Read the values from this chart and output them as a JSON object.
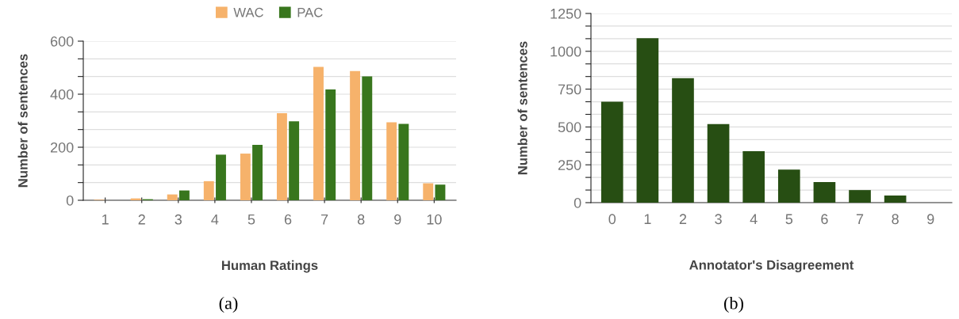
{
  "chart_data": [
    {
      "type": "bar",
      "categories": [
        "1",
        "2",
        "3",
        "4",
        "5",
        "6",
        "7",
        "8",
        "9",
        "10"
      ],
      "xlabel": "Human Ratings",
      "ylabel": "Number of sentences",
      "series": [
        {
          "name": "WAC",
          "color": "#f6b26b",
          "values": [
            2,
            7,
            22,
            72,
            176,
            328,
            503,
            487,
            294,
            64
          ]
        },
        {
          "name": "PAC",
          "color": "#38761d",
          "values": [
            null,
            4,
            37,
            172,
            209,
            298,
            418,
            467,
            288,
            59
          ]
        }
      ],
      "ylim": [
        0,
        600
      ],
      "yticks": [
        0,
        {
          "value": 66.7,
          "label": null
        },
        {
          "value": 133.3,
          "label": null
        },
        200,
        {
          "value": 266.7,
          "label": null
        },
        {
          "value": 333.3,
          "label": null
        },
        400,
        {
          "value": 466.7,
          "label": null
        },
        {
          "value": 533.3,
          "label": null
        },
        600
      ],
      "grid": "y",
      "legend": "top",
      "annotations": [
        "(a)"
      ]
    },
    {
      "type": "bar",
      "categories": [
        "0",
        "1",
        "2",
        "3",
        "4",
        "5",
        "6",
        "7",
        "8",
        "9"
      ],
      "xlabel": "Annotator's Disagreement",
      "ylabel": "Number of sentences",
      "series": [
        {
          "color": "#274e13",
          "values": [
            667,
            1086,
            823,
            519,
            340,
            219,
            136,
            83,
            47,
            null
          ]
        }
      ],
      "ylim": [
        0,
        1250
      ],
      "yticks": [
        0,
        {
          "value": 83.3,
          "label": null
        },
        {
          "value": 166.7,
          "label": null
        },
        250,
        {
          "value": 333.3,
          "label": null
        },
        {
          "value": 416.7,
          "label": null
        },
        500,
        {
          "value": 583.3,
          "label": null
        },
        {
          "value": 666.7,
          "label": null
        },
        750,
        {
          "value": 833.3,
          "label": null
        },
        {
          "value": 916.7,
          "label": null
        },
        1000,
        {
          "value": 1083.3,
          "label": null
        },
        {
          "value": 1166.7,
          "label": null
        },
        1250
      ],
      "grid": "y",
      "annotations": [
        "(b)"
      ]
    }
  ]
}
